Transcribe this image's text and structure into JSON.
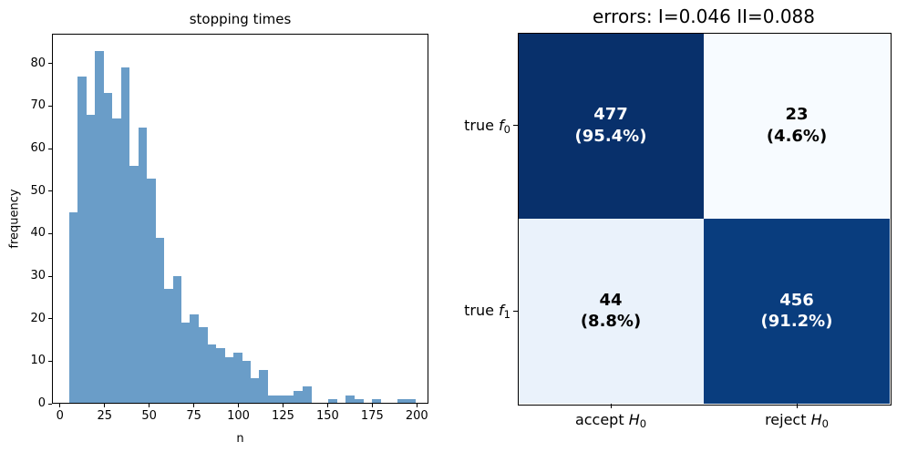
{
  "figure": {
    "background": "#ffffff"
  },
  "chart_data": [
    {
      "id": "stopping-times-histogram",
      "type": "bar",
      "title": "stopping times",
      "xlabel": "n",
      "ylabel": "frequency",
      "bin_start": 5,
      "bin_width": 4.85,
      "values": [
        45,
        77,
        68,
        83,
        73,
        67,
        79,
        56,
        65,
        53,
        39,
        27,
        30,
        19,
        21,
        18,
        14,
        13,
        11,
        12,
        10,
        6,
        8,
        2,
        2,
        2,
        3,
        4,
        0,
        0,
        1,
        0,
        2,
        1,
        0,
        1,
        0,
        0,
        1,
        1
      ],
      "xticks": [
        0,
        25,
        50,
        75,
        100,
        125,
        150,
        175,
        200
      ],
      "yticks": [
        0,
        10,
        20,
        30,
        40,
        50,
        60,
        70,
        80
      ],
      "xlim": [
        -4.5,
        206.5
      ],
      "ylim": [
        0,
        87
      ],
      "bar_color": "#6a9dc8",
      "grid": false,
      "legend": null
    },
    {
      "id": "confusion-matrix",
      "type": "heatmap",
      "title": "errors: I=0.046 II=0.088",
      "row_labels": [
        {
          "prefix": "true ",
          "symbol": "f",
          "subscript": "0"
        },
        {
          "prefix": "true ",
          "symbol": "f",
          "subscript": "1"
        }
      ],
      "col_labels": [
        {
          "prefix": "accept ",
          "symbol": "H",
          "subscript": "0"
        },
        {
          "prefix": "reject ",
          "symbol": "H",
          "subscript": "0"
        }
      ],
      "cells": [
        [
          {
            "value": "477",
            "pct": "(95.4%)",
            "bg": "#08306b",
            "fg": "#ffffff"
          },
          {
            "value": "23",
            "pct": "(4.6%)",
            "bg": "#f7fbff",
            "fg": "#000000"
          }
        ],
        [
          {
            "value": "44",
            "pct": "(8.8%)",
            "bg": "#eaf2fb",
            "fg": "#000000"
          },
          {
            "value": "456",
            "pct": "(91.2%)",
            "bg": "#093d7e",
            "fg": "#ffffff"
          }
        ]
      ]
    }
  ]
}
